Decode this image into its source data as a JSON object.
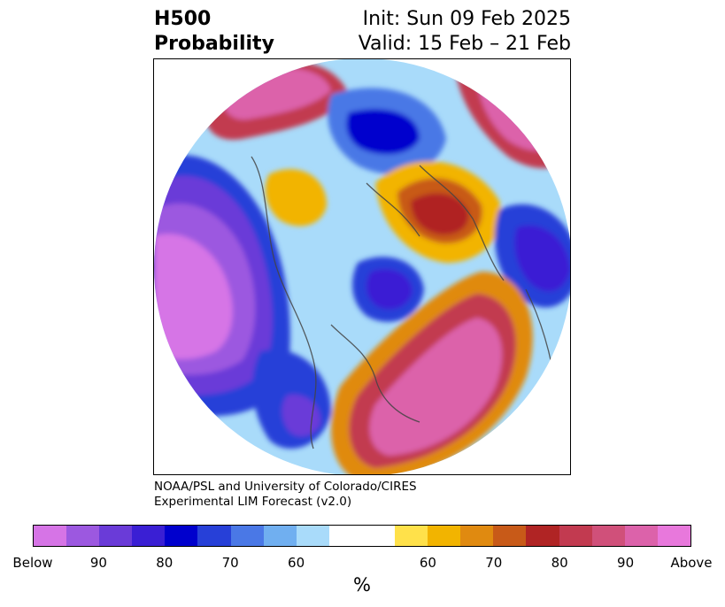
{
  "title": {
    "left_line1": "H500",
    "left_line2": "Probability",
    "right_line1": "Init: Sun 09 Feb 2025",
    "right_line2": "Valid: 15 Feb – 21 Feb"
  },
  "credit": {
    "line1": "NOAA/PSL and University of Colorado/CIRES",
    "line2": "Experimental LIM Forecast (v2.0)"
  },
  "colorbar": {
    "colors": [
      "#d674e6",
      "#9c58e0",
      "#6a3bd8",
      "#3a1fd4",
      "#0000cd",
      "#2740d8",
      "#4a78e6",
      "#70aff0",
      "#a9dbfa",
      "#ffffff",
      "#ffffff",
      "#ffe14a",
      "#f2b400",
      "#e08a10",
      "#c85a18",
      "#b02424",
      "#c23a50",
      "#d0507a",
      "#dc62aa",
      "#e878dc"
    ],
    "ticks": [
      "Below",
      "90",
      "80",
      "70",
      "60",
      "60",
      "70",
      "80",
      "90",
      "Above"
    ],
    "unit": "%"
  }
}
